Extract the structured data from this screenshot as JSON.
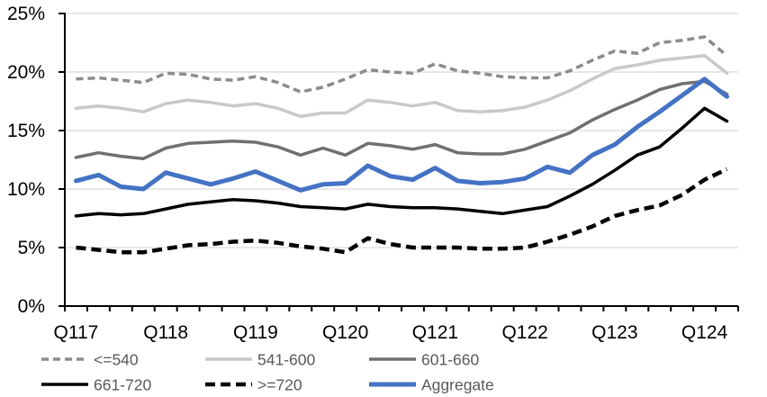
{
  "chart_data": {
    "type": "line",
    "title": "",
    "grid": true,
    "colors": {
      "background": "#FFFFFF",
      "gridline": "#D9D9D9",
      "axis": "#000000",
      "axis_label": "#000000",
      "legend_text": "#595959"
    },
    "y_axis": {
      "min": 0,
      "max": 25,
      "step": 5,
      "tick_labels": [
        "0%",
        "5%",
        "10%",
        "15%",
        "20%",
        "25%"
      ]
    },
    "x_axis": {
      "tick_labels": [
        "Q117",
        "Q118",
        "Q119",
        "Q120",
        "Q121",
        "Q122",
        "Q123",
        "Q124"
      ],
      "label_every_n_categories": 4
    },
    "categories": [
      "Q117",
      "Q217",
      "Q317",
      "Q417",
      "Q118",
      "Q218",
      "Q318",
      "Q418",
      "Q119",
      "Q219",
      "Q319",
      "Q419",
      "Q120",
      "Q220",
      "Q320",
      "Q420",
      "Q121",
      "Q221",
      "Q321",
      "Q421",
      "Q122",
      "Q222",
      "Q322",
      "Q422",
      "Q123",
      "Q223",
      "Q323",
      "Q423",
      "Q124",
      "Q224"
    ],
    "series": [
      {
        "id": "le-540",
        "name": "<=540",
        "color": "#8C8C8C",
        "stroke_width": 3.5,
        "dash_pattern": "8 5",
        "values": [
          19.4,
          19.5,
          19.3,
          19.1,
          19.9,
          19.8,
          19.4,
          19.3,
          19.6,
          19.1,
          18.3,
          18.7,
          19.4,
          20.2,
          20.0,
          19.9,
          20.7,
          20.1,
          19.9,
          19.6,
          19.5,
          19.5,
          20.1,
          21.0,
          21.8,
          21.6,
          22.5,
          22.7,
          23.0,
          21.4
        ]
      },
      {
        "id": "541-600",
        "name": "541-600",
        "color": "#C9C9C9",
        "stroke_width": 3.5,
        "dash_pattern": null,
        "values": [
          16.9,
          17.1,
          16.9,
          16.6,
          17.3,
          17.6,
          17.4,
          17.1,
          17.3,
          16.9,
          16.2,
          16.5,
          16.5,
          17.6,
          17.4,
          17.1,
          17.4,
          16.7,
          16.6,
          16.7,
          17.0,
          17.6,
          18.4,
          19.4,
          20.3,
          20.6,
          21.0,
          21.2,
          21.4,
          19.9
        ]
      },
      {
        "id": "601-660",
        "name": "601-660",
        "color": "#707070",
        "stroke_width": 3.5,
        "dash_pattern": null,
        "values": [
          12.7,
          13.1,
          12.8,
          12.6,
          13.5,
          13.9,
          14.0,
          14.1,
          14.0,
          13.6,
          12.9,
          13.5,
          12.9,
          13.9,
          13.7,
          13.4,
          13.8,
          13.1,
          13.0,
          13.0,
          13.4,
          14.1,
          14.8,
          15.9,
          16.8,
          17.6,
          18.5,
          19.0,
          19.2,
          18.1
        ]
      },
      {
        "id": "661-720",
        "name": "661-720",
        "color": "#000000",
        "stroke_width": 3.5,
        "dash_pattern": null,
        "values": [
          7.7,
          7.9,
          7.8,
          7.9,
          8.3,
          8.7,
          8.9,
          9.1,
          9.0,
          8.8,
          8.5,
          8.4,
          8.3,
          8.7,
          8.5,
          8.4,
          8.4,
          8.3,
          8.1,
          7.9,
          8.2,
          8.5,
          9.4,
          10.4,
          11.6,
          12.9,
          13.6,
          15.2,
          16.9,
          15.8
        ]
      },
      {
        "id": "ge-720",
        "name": ">=720",
        "color": "#000000",
        "stroke_width": 4.5,
        "dash_pattern": "11 6",
        "values": [
          5.0,
          4.8,
          4.6,
          4.6,
          4.9,
          5.2,
          5.3,
          5.5,
          5.6,
          5.4,
          5.1,
          4.9,
          4.6,
          5.8,
          5.3,
          5.0,
          5.0,
          5.0,
          4.9,
          4.9,
          5.0,
          5.5,
          6.1,
          6.8,
          7.7,
          8.2,
          8.6,
          9.5,
          10.8,
          11.7
        ]
      },
      {
        "id": "aggregate",
        "name": "Aggregate",
        "color": "#4472C4",
        "stroke_width": 5,
        "dash_pattern": null,
        "values": [
          10.7,
          11.2,
          10.2,
          10.0,
          11.4,
          10.9,
          10.4,
          10.9,
          11.5,
          10.7,
          9.9,
          10.4,
          10.5,
          12.0,
          11.1,
          10.8,
          11.8,
          10.7,
          10.5,
          10.6,
          10.9,
          11.9,
          11.4,
          12.9,
          13.8,
          15.3,
          16.6,
          18.0,
          19.4,
          17.9
        ]
      }
    ],
    "legend": {
      "position": "bottom",
      "rows": [
        [
          "le-540",
          "541-600",
          "601-660"
        ],
        [
          "661-720",
          "ge-720",
          "aggregate"
        ]
      ]
    }
  }
}
